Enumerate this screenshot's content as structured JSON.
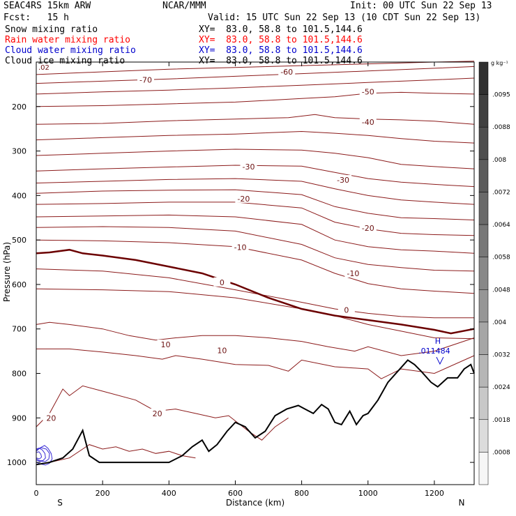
{
  "header": {
    "model": "SEAC4RS 15km ARW",
    "org": "NCAR/MMM",
    "init": "Init: 00 UTC Sun 22 Sep 13",
    "fcst": "Fcst:   15 h",
    "valid": "Valid: 15 UTC Sun 22 Sep 13 (10 CDT Sun 22 Sep 13)",
    "fields": [
      {
        "label": "Snow mixing ratio",
        "xy": "XY=  83.0, 58.8 to 101.5,144.6",
        "color": "#000000"
      },
      {
        "label": "Rain water mixing ratio",
        "xy": "XY=  83.0, 58.8 to 101.5,144.6",
        "color": "#ff0000"
      },
      {
        "label": "Cloud water mixing ratio",
        "xy": "XY=  83.0, 58.8 to 101.5,144.6",
        "color": "#0000cc"
      },
      {
        "label": "Cloud ice mixing ratio",
        "xy": "XY=  83.0, 58.8 to 101.5,144.6",
        "color": "#000000"
      }
    ]
  },
  "chart_data": {
    "type": "contour",
    "xlabel": "Distance (km)",
    "ylabel": "Pressure (hPa)",
    "xlim": [
      0,
      1320
    ],
    "ylim": [
      1050,
      100
    ],
    "x_ticks": [
      0,
      200,
      400,
      600,
      800,
      1000,
      1200
    ],
    "y_ticks": [
      200,
      300,
      400,
      500,
      600,
      700,
      800,
      900,
      1000
    ],
    "x_end_labels": {
      "left": "S",
      "right": "N"
    },
    "temperature_contour_labels": [
      {
        "text": "-70",
        "x": 330,
        "p": 140
      },
      {
        "text": "-60",
        "x": 755,
        "p": 122
      },
      {
        "text": "-50",
        "x": 1000,
        "p": 167
      },
      {
        "text": "-40",
        "x": 1000,
        "p": 235
      },
      {
        "text": "-30",
        "x": 640,
        "p": 335
      },
      {
        "text": "-30",
        "x": 925,
        "p": 365
      },
      {
        "text": "-20",
        "x": 625,
        "p": 407
      },
      {
        "text": "-20",
        "x": 1000,
        "p": 473
      },
      {
        "text": "-10",
        "x": 615,
        "p": 516
      },
      {
        "text": "-10",
        "x": 955,
        "p": 575
      },
      {
        "text": "0",
        "x": 560,
        "p": 595
      },
      {
        "text": "0",
        "x": 935,
        "p": 657
      },
      {
        "text": "10",
        "x": 390,
        "p": 735
      },
      {
        "text": "10",
        "x": 560,
        "p": 748
      },
      {
        "text": "20",
        "x": 365,
        "p": 890
      },
      {
        "text": "20",
        "x": 45,
        "p": 900
      }
    ],
    "corner_label": ".02",
    "max_marker": {
      "label": "H",
      "value": ".011484",
      "x": 1200,
      "p": 735
    },
    "colorbar": {
      "unit": "g kg⁻¹",
      "labels": [
        ".0095",
        ".0088",
        ".008",
        ".0072",
        ".0064",
        ".0058",
        ".0048",
        ".004",
        ".0032",
        ".0024",
        ".0018",
        ".0008"
      ],
      "fill_colors": [
        "#303030",
        "#404040",
        "#4e4e4e",
        "#5c5c5c",
        "#6a6a6a",
        "#787878",
        "#888888",
        "#969696",
        "#a6a6a6",
        "#b6b6b6",
        "#c8c8c8",
        "#dcdcdc",
        "#f6f6f6"
      ]
    },
    "terrain": {
      "x": [
        0,
        40,
        80,
        110,
        140,
        160,
        190,
        250,
        320,
        400,
        440,
        470,
        500,
        520,
        545,
        575,
        600,
        630,
        660,
        690,
        720,
        755,
        790,
        810,
        835,
        860,
        880,
        900,
        920,
        945,
        965,
        985,
        1000,
        1030,
        1060,
        1090,
        1120,
        1140,
        1160,
        1190,
        1210,
        1240,
        1270,
        1290,
        1310,
        1320
      ],
      "p": [
        1005,
        1000,
        990,
        970,
        928,
        985,
        1000,
        1000,
        1000,
        1000,
        985,
        965,
        950,
        975,
        960,
        930,
        910,
        920,
        945,
        930,
        895,
        880,
        872,
        880,
        890,
        870,
        880,
        910,
        915,
        885,
        915,
        895,
        890,
        860,
        820,
        795,
        770,
        780,
        795,
        820,
        830,
        810,
        810,
        790,
        780,
        800
      ]
    },
    "freezing_level": {
      "x": [
        0,
        40,
        100,
        140,
        200,
        300,
        400,
        500,
        600,
        700,
        800,
        900,
        1000,
        1100,
        1200,
        1250,
        1320
      ],
      "p": [
        530,
        528,
        522,
        530,
        535,
        545,
        560,
        575,
        600,
        630,
        655,
        670,
        680,
        690,
        702,
        710,
        700
      ]
    },
    "isotherms": [
      {
        "x": [
          0,
          200,
          400,
          600,
          800,
          1000,
          1200,
          1320
        ],
        "p": [
          128,
          122,
          116,
          112,
          108,
          104,
          100,
          98
        ]
      },
      {
        "x": [
          0,
          200,
          400,
          600,
          800,
          1000,
          1200,
          1320
        ],
        "p": [
          148,
          143,
          138,
          132,
          126,
          120,
          114,
          110
        ]
      },
      {
        "x": [
          0,
          200,
          400,
          600,
          800,
          1000,
          1200,
          1320
        ],
        "p": [
          172,
          167,
          163,
          158,
          152,
          146,
          140,
          136
        ]
      },
      {
        "x": [
          0,
          200,
          400,
          600,
          800,
          900,
          1000,
          1100,
          1200,
          1320
        ],
        "p": [
          200,
          198,
          194,
          190,
          182,
          178,
          170,
          168,
          170,
          172
        ]
      },
      {
        "x": [
          0,
          200,
          400,
          600,
          760,
          840,
          900,
          1000,
          1100,
          1200,
          1320
        ],
        "p": [
          240,
          238,
          232,
          228,
          225,
          218,
          225,
          228,
          230,
          233,
          240
        ]
      },
      {
        "x": [
          0,
          200,
          400,
          600,
          800,
          900,
          1000,
          1100,
          1200,
          1320
        ],
        "p": [
          275,
          270,
          265,
          262,
          256,
          260,
          265,
          272,
          278,
          282
        ]
      },
      {
        "x": [
          0,
          200,
          400,
          600,
          800,
          900,
          1000,
          1100,
          1200,
          1320
        ],
        "p": [
          310,
          305,
          300,
          296,
          298,
          305,
          315,
          330,
          335,
          340
        ]
      },
      {
        "x": [
          0,
          200,
          400,
          600,
          800,
          900,
          1000,
          1100,
          1200,
          1320
        ],
        "p": [
          345,
          340,
          336,
          332,
          334,
          348,
          362,
          370,
          375,
          380
        ]
      },
      {
        "x": [
          0,
          200,
          400,
          600,
          800,
          900,
          1000,
          1100,
          1200,
          1320
        ],
        "p": [
          372,
          368,
          364,
          362,
          368,
          385,
          400,
          410,
          415,
          420
        ]
      },
      {
        "x": [
          0,
          200,
          400,
          600,
          800,
          900,
          1000,
          1100,
          1200,
          1320
        ],
        "p": [
          395,
          390,
          388,
          387,
          398,
          425,
          440,
          450,
          452,
          455
        ]
      },
      {
        "x": [
          0,
          200,
          400,
          600,
          800,
          900,
          1000,
          1100,
          1200,
          1320
        ],
        "p": [
          420,
          418,
          415,
          415,
          428,
          460,
          475,
          485,
          488,
          490
        ]
      },
      {
        "x": [
          0,
          200,
          400,
          600,
          800,
          900,
          1000,
          1100,
          1200,
          1320
        ],
        "p": [
          448,
          446,
          444,
          448,
          465,
          500,
          515,
          522,
          525,
          530
        ]
      },
      {
        "x": [
          0,
          200,
          400,
          600,
          800,
          900,
          1000,
          1100,
          1200,
          1320
        ],
        "p": [
          472,
          470,
          472,
          480,
          510,
          540,
          555,
          562,
          568,
          570
        ]
      },
      {
        "x": [
          0,
          200,
          400,
          600,
          800,
          900,
          1000,
          1100,
          1200,
          1320
        ],
        "p": [
          500,
          502,
          506,
          515,
          545,
          575,
          598,
          610,
          615,
          620
        ]
      },
      {
        "x": [
          0,
          200,
          400,
          600,
          800,
          900,
          1000,
          1100,
          1200,
          1320
        ],
        "p": [
          565,
          570,
          585,
          612,
          640,
          655,
          665,
          672,
          675,
          675
        ]
      },
      {
        "x": [
          0,
          200,
          400,
          600,
          800,
          900,
          1000,
          1100,
          1200,
          1320
        ],
        "p": [
          610,
          612,
          616,
          630,
          655,
          670,
          690,
          705,
          720,
          722
        ]
      },
      {
        "x": [
          0,
          40,
          100,
          200,
          280,
          360,
          420,
          500,
          600,
          700,
          800,
          880,
          960,
          1000,
          1100,
          1200,
          1320
        ],
        "p": [
          690,
          685,
          690,
          700,
          715,
          725,
          720,
          715,
          715,
          720,
          728,
          740,
          750,
          740,
          760,
          750,
          720
        ]
      },
      {
        "x": [
          0,
          100,
          200,
          300,
          380,
          420,
          500,
          600,
          700,
          760,
          800,
          900,
          1000,
          1040,
          1100,
          1200,
          1320
        ],
        "p": [
          745,
          745,
          752,
          760,
          768,
          760,
          768,
          780,
          782,
          795,
          770,
          785,
          790,
          812,
          790,
          800,
          760
        ]
      },
      {
        "x": [
          0,
          40,
          80,
          100,
          140,
          200,
          300,
          360,
          420,
          480,
          540,
          580,
          640,
          680,
          720,
          760
        ],
        "p": [
          920,
          890,
          835,
          850,
          828,
          840,
          860,
          885,
          880,
          890,
          900,
          895,
          930,
          950,
          920,
          900
        ]
      },
      {
        "x": [
          40,
          100,
          160,
          200,
          240,
          280,
          320,
          360,
          400,
          440,
          480
        ],
        "p": [
          1000,
          990,
          960,
          970,
          965,
          975,
          970,
          980,
          975,
          985,
          990
        ]
      }
    ],
    "cloud_water": [
      {
        "x": [
          0,
          10,
          25,
          35,
          45,
          48,
          40,
          28,
          15,
          0
        ],
        "p": [
          975,
          968,
          962,
          968,
          980,
          992,
          1002,
          1006,
          1004,
          1000
        ]
      },
      {
        "x": [
          0,
          15,
          30,
          40,
          38,
          28,
          12,
          0
        ],
        "p": [
          972,
          967,
          970,
          980,
          992,
          998,
          998,
          995
        ]
      },
      {
        "x": [
          0,
          8,
          18,
          26,
          28,
          20,
          10,
          0
        ],
        "p": [
          970,
          968,
          972,
          980,
          990,
          996,
          996,
          992
        ]
      },
      {
        "x": [
          0,
          8,
          14,
          16,
          10,
          0
        ],
        "p": [
          978,
          976,
          982,
          988,
          992,
          990
        ]
      }
    ]
  }
}
